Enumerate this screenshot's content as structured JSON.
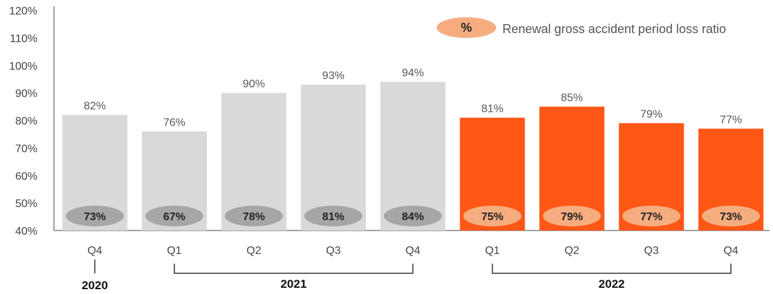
{
  "chart_data": {
    "type": "bar",
    "title": "",
    "xlabel": "",
    "ylabel": "",
    "ylim": [
      40,
      120
    ],
    "yticks": [
      40,
      50,
      60,
      70,
      80,
      90,
      100,
      110,
      120
    ],
    "ytick_labels": [
      "40%",
      "50%",
      "60%",
      "70%",
      "80%",
      "90%",
      "100%",
      "110%",
      "120%"
    ],
    "categories": [
      "Q4",
      "Q1",
      "Q2",
      "Q3",
      "Q4",
      "Q1",
      "Q2",
      "Q3",
      "Q4"
    ],
    "year_groups": [
      {
        "label": "2020",
        "start": 0,
        "end": 0
      },
      {
        "label": "2021",
        "start": 1,
        "end": 4
      },
      {
        "label": "2022",
        "start": 5,
        "end": 8
      }
    ],
    "series": [
      {
        "name": "Gross accident period loss ratio",
        "values": [
          82,
          76,
          90,
          93,
          94,
          81,
          85,
          79,
          77
        ],
        "labels": [
          "82%",
          "76%",
          "90%",
          "93%",
          "94%",
          "81%",
          "85%",
          "79%",
          "77%"
        ]
      },
      {
        "name": "Renewal gross accident period loss ratio",
        "values": [
          73,
          67,
          78,
          81,
          84,
          75,
          79,
          77,
          73
        ],
        "labels": [
          "73%",
          "67%",
          "78%",
          "81%",
          "84%",
          "75%",
          "79%",
          "77%",
          "73%"
        ]
      }
    ],
    "legend": {
      "symbol": "%",
      "label": "Renewal gross accident period loss ratio",
      "position": "top-right"
    },
    "colors": {
      "bar_past": "#d9d9d9",
      "bar_current": "#fe5716",
      "oval_past": "#a6a6a6",
      "oval_current": "#f5ad80",
      "axis": "#444444",
      "bracket": "#333333"
    },
    "grid": false
  }
}
